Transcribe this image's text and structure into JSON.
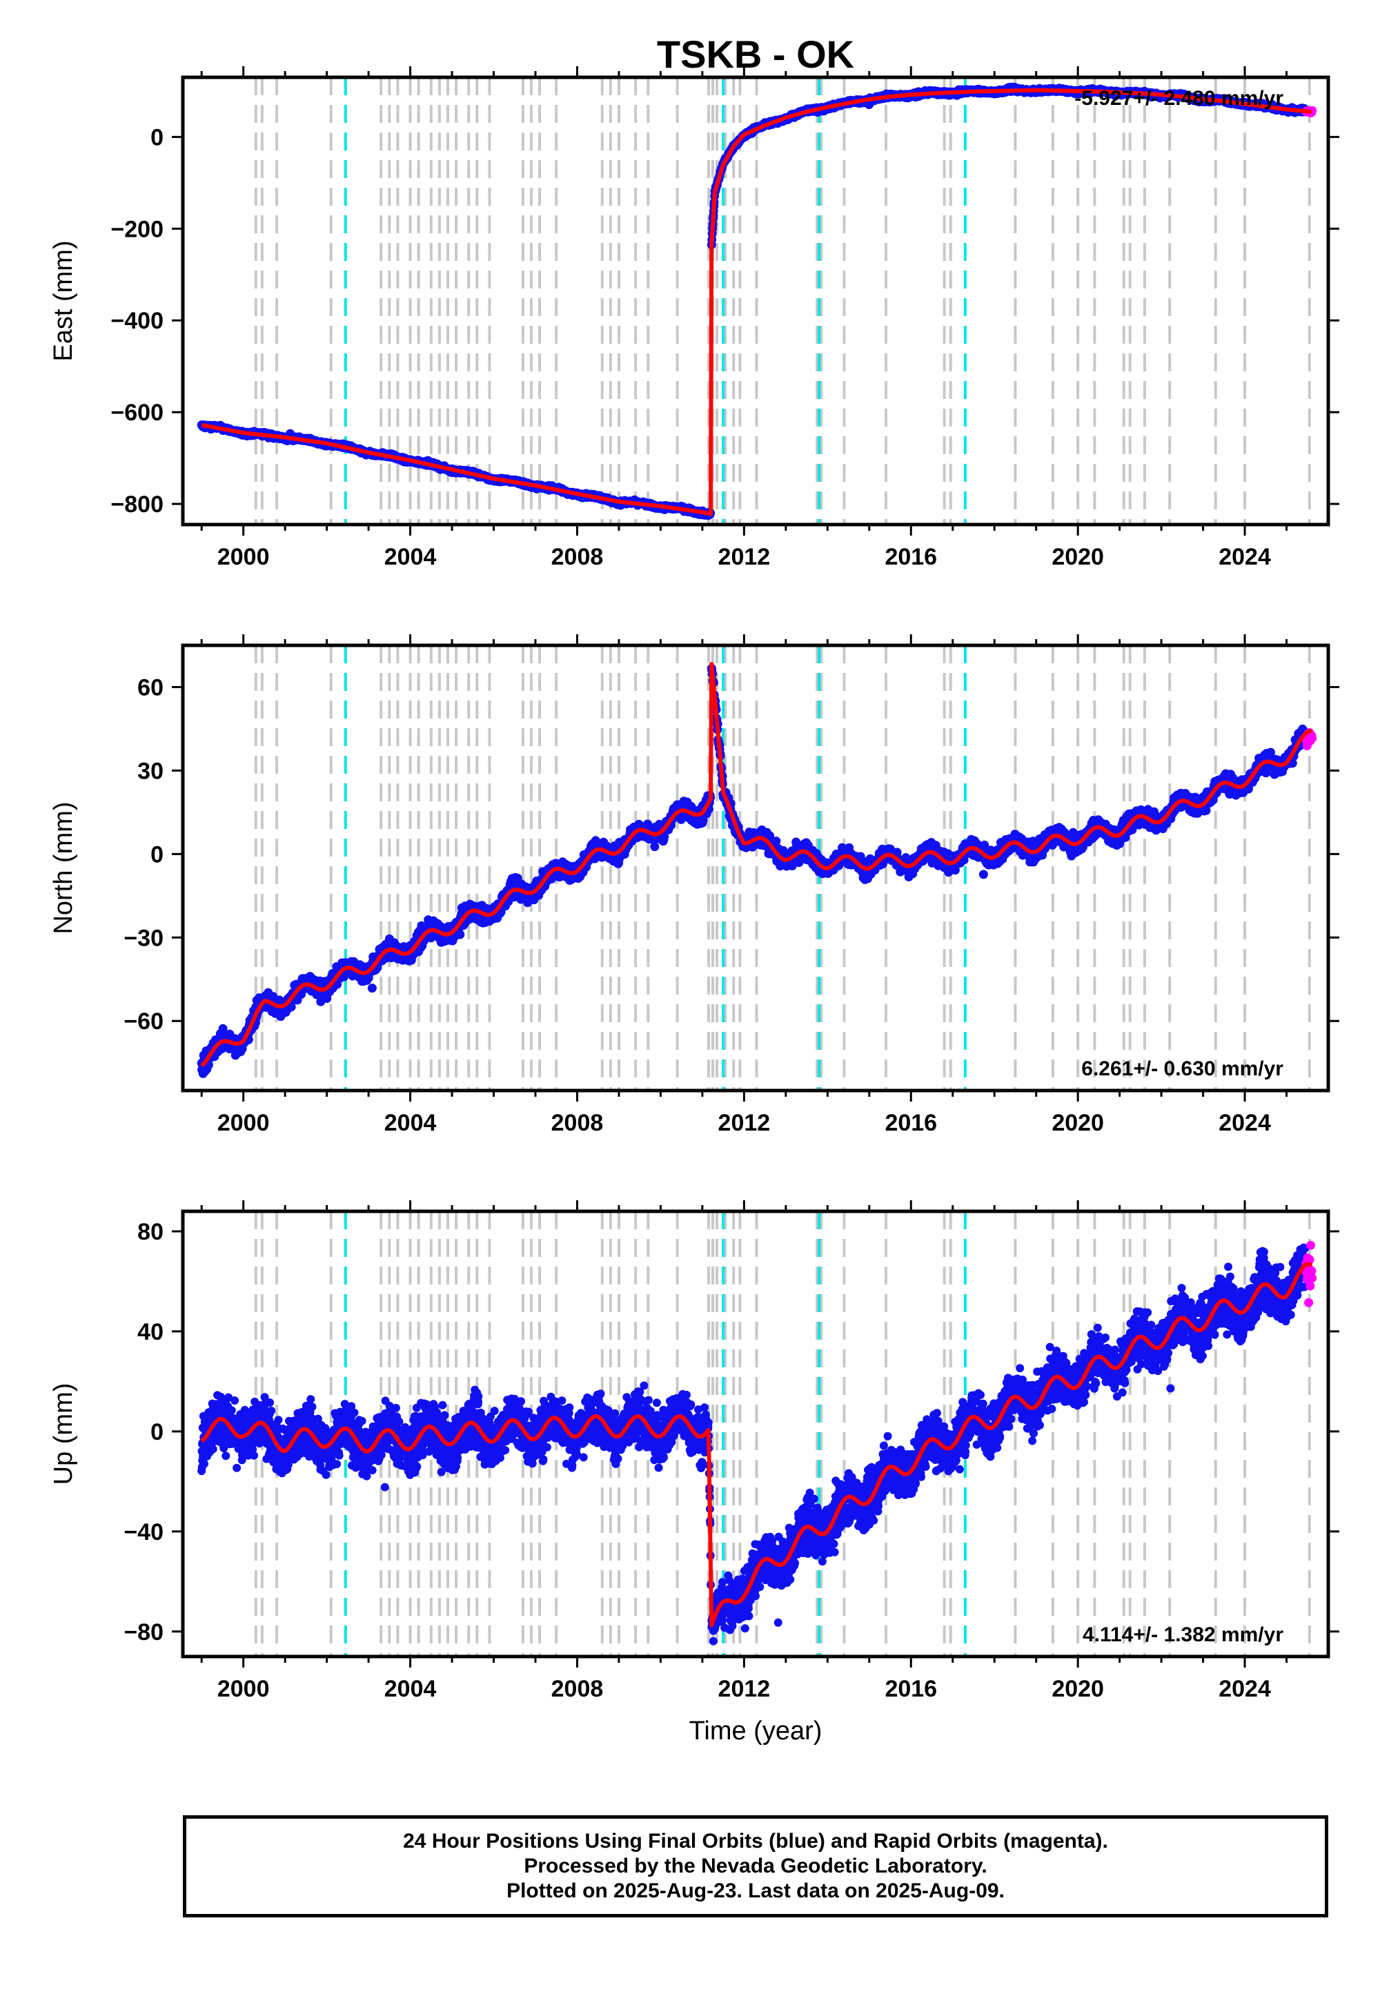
{
  "chart_data": {
    "title": "TSKB - OK",
    "type": "scatter",
    "xlabel": "Time (year)",
    "xlim": [
      1998.55,
      2026.0
    ],
    "xticks": [
      2000,
      2004,
      2008,
      2012,
      2016,
      2020,
      2024
    ],
    "gray_lines": [
      2000.3,
      2000.45,
      2000.8,
      2002.1,
      2003.3,
      2003.5,
      2003.7,
      2004.0,
      2004.2,
      2004.5,
      2004.7,
      2004.9,
      2005.1,
      2005.4,
      2005.6,
      2005.9,
      2006.7,
      2006.9,
      2007.1,
      2007.5,
      2008.6,
      2008.8,
      2009.0,
      2009.4,
      2009.7,
      2010.4,
      2011.15,
      2011.25,
      2011.35,
      2011.55,
      2011.75,
      2011.9,
      2012.3,
      2013.75,
      2013.85,
      2014.4,
      2015.4,
      2016.8,
      2016.95,
      2018.5,
      2019.4,
      2020.0,
      2020.4,
      2021.1,
      2021.25,
      2021.6,
      2022.2,
      2023.3,
      2024.0,
      2025.55
    ],
    "cyan_lines": [
      2002.45,
      2011.5,
      2013.8,
      2017.3
    ],
    "panels": [
      {
        "ylabel": "East (mm)",
        "ylim": [
          -845,
          130
        ],
        "yticks": [
          -800,
          -600,
          -400,
          -200,
          0
        ],
        "rate_text": "-5.927+/- 2.480 mm/yr",
        "rate_position": "top-right",
        "model": {
          "x": [
            1999.0,
            2000.0,
            2001.0,
            2002.0,
            2003.0,
            2004.0,
            2005.0,
            2006.0,
            2007.0,
            2008.0,
            2009.0,
            2010.0,
            2011.0,
            2011.2,
            2011.21,
            2011.3,
            2011.5,
            2011.75,
            2012.0,
            2012.5,
            2013.0,
            2013.5,
            2014.0,
            2014.5,
            2015.0,
            2015.5,
            2016.0,
            2016.5,
            2017.0,
            2017.5,
            2018.0,
            2018.5,
            2019.0,
            2019.5,
            2020.0,
            2020.5,
            2021.0,
            2021.5,
            2022.0,
            2022.5,
            2023.0,
            2023.5,
            2024.0,
            2024.5,
            2025.0,
            2025.6
          ],
          "y": [
            -628,
            -645,
            -655,
            -668,
            -688,
            -705,
            -725,
            -745,
            -760,
            -778,
            -795,
            -805,
            -818,
            -822,
            -250,
            -120,
            -60,
            -20,
            5,
            25,
            42,
            55,
            65,
            74,
            82,
            88,
            92,
            95,
            97,
            99,
            100,
            101,
            102,
            101,
            100,
            99,
            97,
            95,
            92,
            88,
            82,
            78,
            72,
            66,
            60,
            55
          ]
        }
      },
      {
        "ylabel": "North (mm)",
        "ylim": [
          -85,
          75
        ],
        "yticks": [
          -60,
          -30,
          0,
          30,
          60
        ],
        "rate_text": "6.261+/- 0.630 mm/yr",
        "rate_position": "bottom-right",
        "model": {
          "x": [
            1999.0,
            2000.0,
            2000.5,
            2001.0,
            2002.0,
            2003.0,
            2004.0,
            2005.0,
            2006.0,
            2007.0,
            2008.0,
            2009.0,
            2010.0,
            2011.0,
            2011.2,
            2011.22,
            2011.5,
            2012.0,
            2013.0,
            2014.0,
            2015.0,
            2016.0,
            2017.0,
            2018.0,
            2019.0,
            2020.0,
            2021.0,
            2022.0,
            2023.0,
            2024.0,
            2025.0,
            2025.6
          ],
          "y": [
            -74,
            -65,
            -55,
            -52,
            -46,
            -40,
            -33,
            -26,
            -19,
            -11,
            -4,
            3,
            10,
            17,
            20,
            68,
            20,
            6,
            0,
            -3,
            -3,
            -2,
            -1,
            1,
            3,
            6,
            9,
            14,
            20,
            27,
            35,
            43
          ]
        }
      },
      {
        "ylabel": "Up (mm)",
        "ylim": [
          -90,
          88
        ],
        "yticks": [
          -80,
          -40,
          0,
          40,
          80
        ],
        "rate_text": "4.114+/- 1.382 mm/yr",
        "rate_position": "bottom-right",
        "model": {
          "x": [
            1999.0,
            2000.0,
            2001.0,
            2002.0,
            2003.0,
            2004.0,
            2005.0,
            2006.0,
            2007.0,
            2008.0,
            2009.0,
            2010.0,
            2011.15,
            2011.22,
            2011.5,
            2012.0,
            2013.0,
            2014.0,
            2015.0,
            2016.0,
            2017.0,
            2018.0,
            2019.0,
            2020.0,
            2021.0,
            2022.0,
            2023.0,
            2024.0,
            2025.0,
            2025.6
          ],
          "y": [
            0,
            2,
            -4,
            -2,
            -4,
            -3,
            -1,
            0,
            1,
            2,
            2,
            2,
            2,
            -78,
            -72,
            -62,
            -48,
            -36,
            -24,
            -12,
            -2,
            6,
            14,
            22,
            30,
            38,
            45,
            52,
            58,
            64
          ]
        }
      }
    ]
  },
  "footer": {
    "line1": "24 Hour Positions Using Final Orbits (blue) and Rapid Orbits (magenta).",
    "line2": "Processed by the Nevada Geodetic Laboratory.",
    "line3": "Plotted on 2025-Aug-23. Last data on 2025-Aug-09."
  },
  "colors": {
    "final_orbits": "#1010f0",
    "rapid_orbits": "#ff00ff",
    "model": "#ff0000",
    "gray_line": "#c8c8c8",
    "cyan_line": "#00e5e5"
  }
}
